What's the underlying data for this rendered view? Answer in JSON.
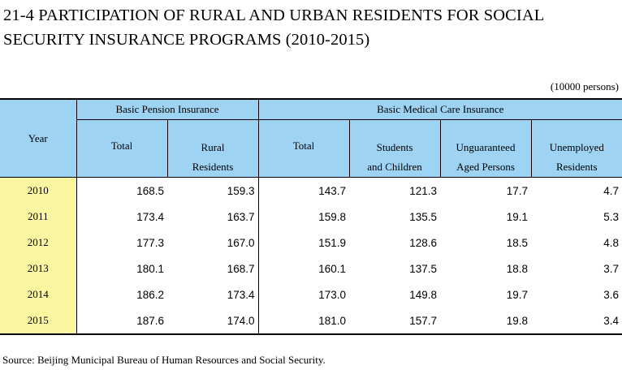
{
  "title_line1": "21-4  PARTICIPATION OF RURAL AND URBAN RESIDENTS FOR SOCIAL",
  "title_line2": "SECURITY INSURANCE PROGRAMS (2010-2015)",
  "unit": "(10000 persons)",
  "header": {
    "year": "Year",
    "pension_group": "Basic Pension Insurance",
    "medical_group": "Basic Medical Care Insurance",
    "pension_total": "Total",
    "rural_residents_l1": "Rural",
    "rural_residents_l2": "Residents",
    "medical_total": "Total",
    "students_l1": "Students",
    "students_l2": "and Children",
    "unguaranteed_l1": "Unguaranteed",
    "unguaranteed_l2": "Aged Persons",
    "unemployed_l1": "Unemployed",
    "unemployed_l2": "Residents"
  },
  "rows": [
    {
      "year": "2010",
      "pension_total": "168.5",
      "rural": "159.3",
      "medical_total": "143.7",
      "students": "121.3",
      "aged": "17.7",
      "unemployed": "4.7"
    },
    {
      "year": "2011",
      "pension_total": "173.4",
      "rural": "163.7",
      "medical_total": "159.8",
      "students": "135.5",
      "aged": "19.1",
      "unemployed": "5.3"
    },
    {
      "year": "2012",
      "pension_total": "177.3",
      "rural": "167.0",
      "medical_total": "151.9",
      "students": "128.6",
      "aged": "18.5",
      "unemployed": "4.8"
    },
    {
      "year": "2013",
      "pension_total": "180.1",
      "rural": "168.7",
      "medical_total": "160.1",
      "students": "137.5",
      "aged": "18.8",
      "unemployed": "3.7"
    },
    {
      "year": "2014",
      "pension_total": "186.2",
      "rural": "173.4",
      "medical_total": "173.0",
      "students": "149.8",
      "aged": "19.7",
      "unemployed": "3.6"
    },
    {
      "year": "2015",
      "pension_total": "187.6",
      "rural": "174.0",
      "medical_total": "181.0",
      "students": "157.7",
      "aged": "19.8",
      "unemployed": "3.4"
    }
  ],
  "source": "Source: Beijing Municipal Bureau of Human Resources and Social Security.",
  "colors": {
    "header_bg": "#9fd3f4",
    "year_bg": "#fbf7a0"
  }
}
